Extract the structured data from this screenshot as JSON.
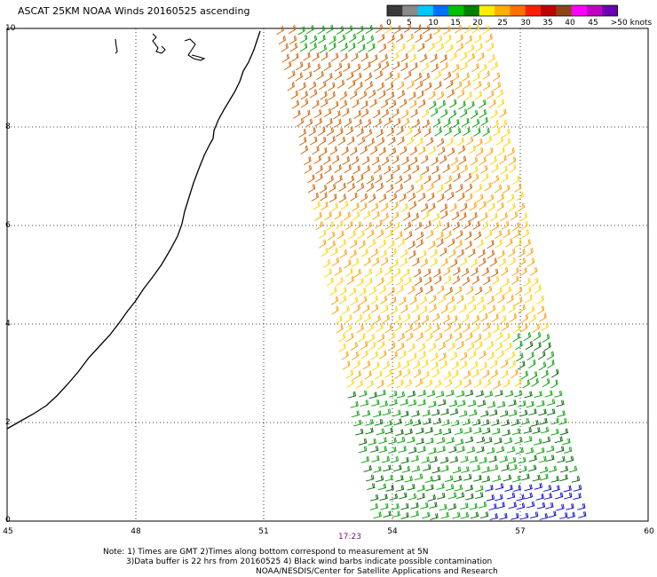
{
  "header": {
    "title": "ASCAT 25KM NOAA Winds 20160525 ascending"
  },
  "colorbar": {
    "segments": [
      "#3a3a3a",
      "#8a8a8a",
      "#00c8ff",
      "#0070ff",
      "#00c000",
      "#008000",
      "#ffee00",
      "#ffb000",
      "#ff7000",
      "#ff2000",
      "#c00000",
      "#8b4513",
      "#ff00ff",
      "#c000c0",
      "#6a00b0"
    ],
    "labels": [
      "0",
      "5",
      "10",
      "15",
      "20",
      "25",
      "30",
      "35",
      "40",
      "45",
      ">50 knots"
    ]
  },
  "axes": {
    "y_labels": [
      "10",
      "8",
      "6",
      "4",
      "2",
      "0"
    ],
    "x_labels": [
      "45",
      "48",
      "51",
      "54",
      "57",
      "60"
    ]
  },
  "time_marker": "17:23",
  "notes": {
    "line1": "Note: 1) Times are GMT 2)Times along bottom correspond to measurement at 5N",
    "line2": "3)Data buffer is 22 hrs from 20160525 4) Black wind barbs indicate possible contamination",
    "line3": "NOAA/NESDIS/Center for Satellite Applications and Research"
  },
  "map": {
    "lon_range": [
      45,
      60
    ],
    "lat_range": [
      0,
      10
    ],
    "coastline_color": "#000000",
    "swath_colors": {
      "orange_dark": "#d06000",
      "orange": "#ffa000",
      "yellow": "#ffd200",
      "green": "#00a000",
      "dark_green": "#006400",
      "blue": "#0000cc"
    }
  }
}
